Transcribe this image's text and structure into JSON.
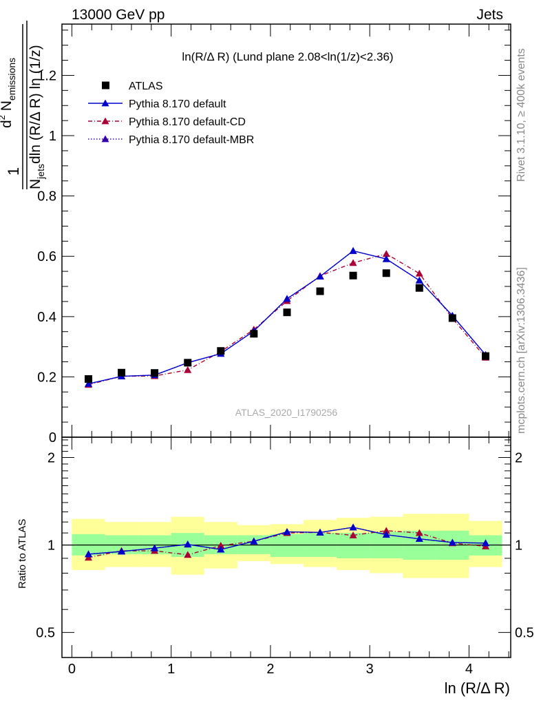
{
  "header": {
    "left": "13000 GeV pp",
    "right": "Jets"
  },
  "plot_title": "ln(R/Δ R) (Lund plane 2.08<ln(1/z)<2.36)",
  "analysis_label": "ATLAS_2020_I1790256",
  "side_labels": {
    "rivet": "Rivet 3.1.10, ≥ 400k events",
    "mcplots": "mcplots.cern.ch [arXiv:1306.3436]"
  },
  "colors": {
    "atlas": "#000000",
    "default": "#0000cc",
    "cd": "#aa0033",
    "mbr": "#3300aa",
    "band_inner": "#99ff99",
    "band_outer": "#ffff99"
  },
  "chart_data": [
    {
      "type": "scatter",
      "panel": "main",
      "ylabel_parts": {
        "one": "1",
        "n": "N",
        "jets": "jets",
        "d2n_d": "d",
        "d2n_2": "2",
        "d2n_n": " N",
        "emissions": "emissions",
        "denominator_rest": "dln (R/Δ R) ln (1/z)"
      },
      "xlim": [
        -0.1,
        4.42
      ],
      "ylim": [
        0,
        1.37
      ],
      "y_ticks": [
        "0",
        "0.2",
        "0.4",
        "0.6",
        "0.8",
        "1",
        "1.2"
      ],
      "y_tick_values": [
        0,
        0.2,
        0.4,
        0.6,
        0.8,
        1,
        1.2
      ],
      "x": [
        0.167,
        0.5,
        0.833,
        1.167,
        1.5,
        1.833,
        2.167,
        2.5,
        2.833,
        3.167,
        3.5,
        3.833,
        4.167
      ],
      "series": [
        {
          "name": "ATLAS",
          "style": "square",
          "values": [
            0.193,
            0.214,
            0.213,
            0.247,
            0.286,
            0.343,
            0.414,
            0.484,
            0.536,
            0.544,
            0.495,
            0.395,
            0.269
          ]
        },
        {
          "name": "Pythia 8.170 default",
          "style": "solid",
          "values": [
            0.177,
            0.202,
            0.206,
            0.247,
            0.277,
            0.352,
            0.459,
            0.533,
            0.618,
            0.591,
            0.52,
            0.403,
            0.273
          ]
        },
        {
          "name": "Pythia 8.170 default-CD",
          "style": "dashdot",
          "values": [
            0.174,
            0.202,
            0.203,
            0.223,
            0.284,
            0.357,
            0.452,
            0.535,
            0.578,
            0.608,
            0.543,
            0.394,
            0.264
          ]
        },
        {
          "name": "Pythia 8.170 default-MBR",
          "style": "dotted",
          "values": [
            0.177,
            0.202,
            0.206,
            0.247,
            0.277,
            0.352,
            0.459,
            0.533,
            0.618,
            0.591,
            0.52,
            0.403,
            0.273
          ]
        }
      ]
    },
    {
      "type": "line",
      "panel": "ratio",
      "ylabel": "Ratio to ATLAS",
      "xlabel": "ln (R/Δ R)",
      "scale": "log",
      "ylim": [
        0.41,
        2.35
      ],
      "y_ticks": [
        "0.5",
        "1",
        "2"
      ],
      "y_tick_values": [
        0.5,
        1,
        2
      ],
      "x_ticks": [
        "0",
        "1",
        "2",
        "3",
        "4"
      ],
      "x_tick_values": [
        0,
        1,
        2,
        3,
        4
      ],
      "bin_edges": [
        0,
        0.333,
        0.667,
        1.0,
        1.333,
        1.667,
        2.0,
        2.333,
        2.667,
        3.0,
        3.333,
        3.667,
        4.0,
        4.333
      ],
      "band_inner": [
        [
          0.92,
          1.09
        ],
        [
          0.93,
          1.08
        ],
        [
          0.93,
          1.08
        ],
        [
          0.91,
          1.1
        ],
        [
          0.93,
          1.08
        ],
        [
          0.93,
          1.08
        ],
        [
          0.91,
          1.09
        ],
        [
          0.91,
          1.1
        ],
        [
          0.9,
          1.1
        ],
        [
          0.9,
          1.11
        ],
        [
          0.89,
          1.12
        ],
        [
          0.89,
          1.12
        ],
        [
          0.92,
          1.08
        ]
      ],
      "band_outer": [
        [
          0.82,
          1.23
        ],
        [
          0.84,
          1.2
        ],
        [
          0.84,
          1.2
        ],
        [
          0.79,
          1.25
        ],
        [
          0.83,
          1.2
        ],
        [
          0.88,
          1.17
        ],
        [
          0.86,
          1.18
        ],
        [
          0.84,
          1.22
        ],
        [
          0.82,
          1.24
        ],
        [
          0.8,
          1.25
        ],
        [
          0.77,
          1.28
        ],
        [
          0.77,
          1.28
        ],
        [
          0.84,
          1.21
        ]
      ],
      "series": [
        {
          "name": "Pythia 8.170 default",
          "values": [
            0.93,
            0.95,
            0.975,
            1.005,
            0.965,
            1.03,
            1.11,
            1.105,
            1.15,
            1.085,
            1.05,
            1.02,
            1.015
          ]
        },
        {
          "name": "Pythia 8.170 default-CD",
          "values": [
            0.905,
            0.955,
            0.955,
            0.925,
            0.995,
            1.03,
            1.1,
            1.105,
            1.08,
            1.12,
            1.1,
            1.015,
            0.99
          ]
        },
        {
          "name": "Pythia 8.170 default-MBR",
          "values": [
            0.93,
            0.95,
            0.975,
            1.005,
            0.965,
            1.03,
            1.11,
            1.105,
            1.15,
            1.085,
            1.05,
            1.02,
            1.015
          ]
        }
      ]
    }
  ]
}
